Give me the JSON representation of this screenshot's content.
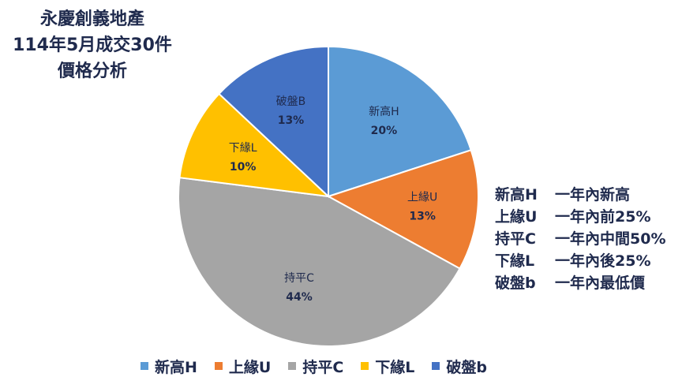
{
  "title": {
    "line1": "永慶創義地產",
    "line2": "114年5月成交30件",
    "line3": "價格分析"
  },
  "chart_data": {
    "type": "pie",
    "title": "永慶創義地產 114年5月成交30件 價格分析",
    "categories": [
      "新高H",
      "上緣U",
      "持平C",
      "下緣L",
      "破盤B"
    ],
    "values": [
      20,
      13,
      44,
      10,
      13
    ],
    "data_labels": [
      "20%",
      "13%",
      "44%",
      "10%",
      "13%"
    ],
    "colors": [
      "#5b9bd5",
      "#ed7d31",
      "#a5a5a5",
      "#ffc000",
      "#4472c4"
    ],
    "legend": {
      "position": "bottom",
      "entries": [
        "新高H",
        "上緣U",
        "持平C",
        "下緣L",
        "破盤b"
      ]
    }
  },
  "notes": [
    {
      "code": "新高H",
      "desc": "一年內新高"
    },
    {
      "code": "上緣U",
      "desc": "一年內前25%"
    },
    {
      "code": "持平C",
      "desc": "一年內中間50%"
    },
    {
      "code": "下緣L",
      "desc": "一年內後25%"
    },
    {
      "code": "破盤b",
      "desc": "一年內最低價"
    }
  ]
}
